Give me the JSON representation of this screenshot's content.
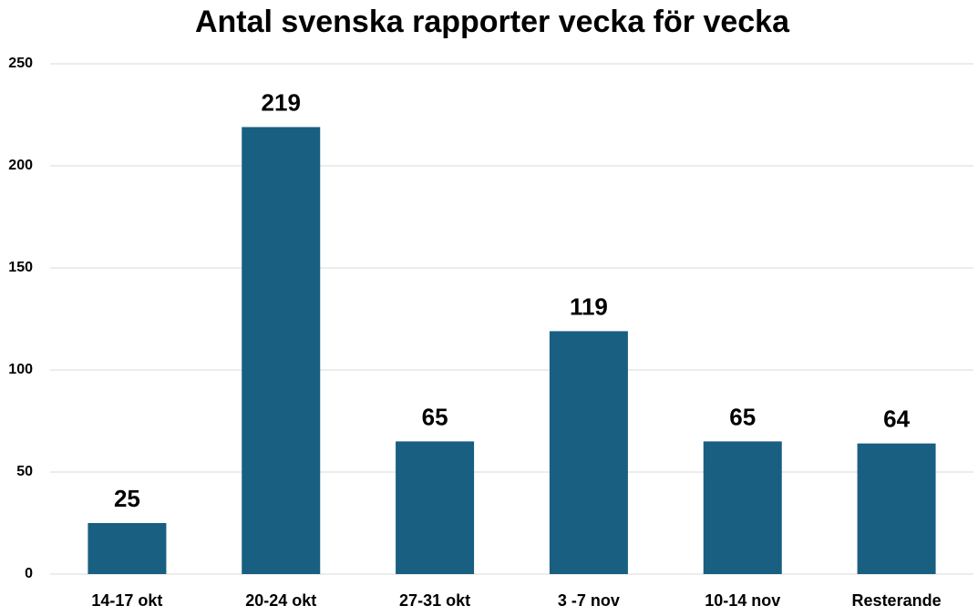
{
  "chart_data": {
    "type": "bar",
    "title": "Antal svenska rapporter vecka för vecka",
    "categories": [
      "14-17 okt",
      "20-24 okt",
      "27-31 okt",
      "3 -7 nov",
      "10-14 nov",
      "Resterande"
    ],
    "values": [
      25,
      219,
      65,
      119,
      65,
      64
    ],
    "color": "#185f82",
    "ylim": [
      0,
      250
    ],
    "yticks": [
      0,
      50,
      100,
      150,
      200,
      250
    ],
    "grid": true
  }
}
